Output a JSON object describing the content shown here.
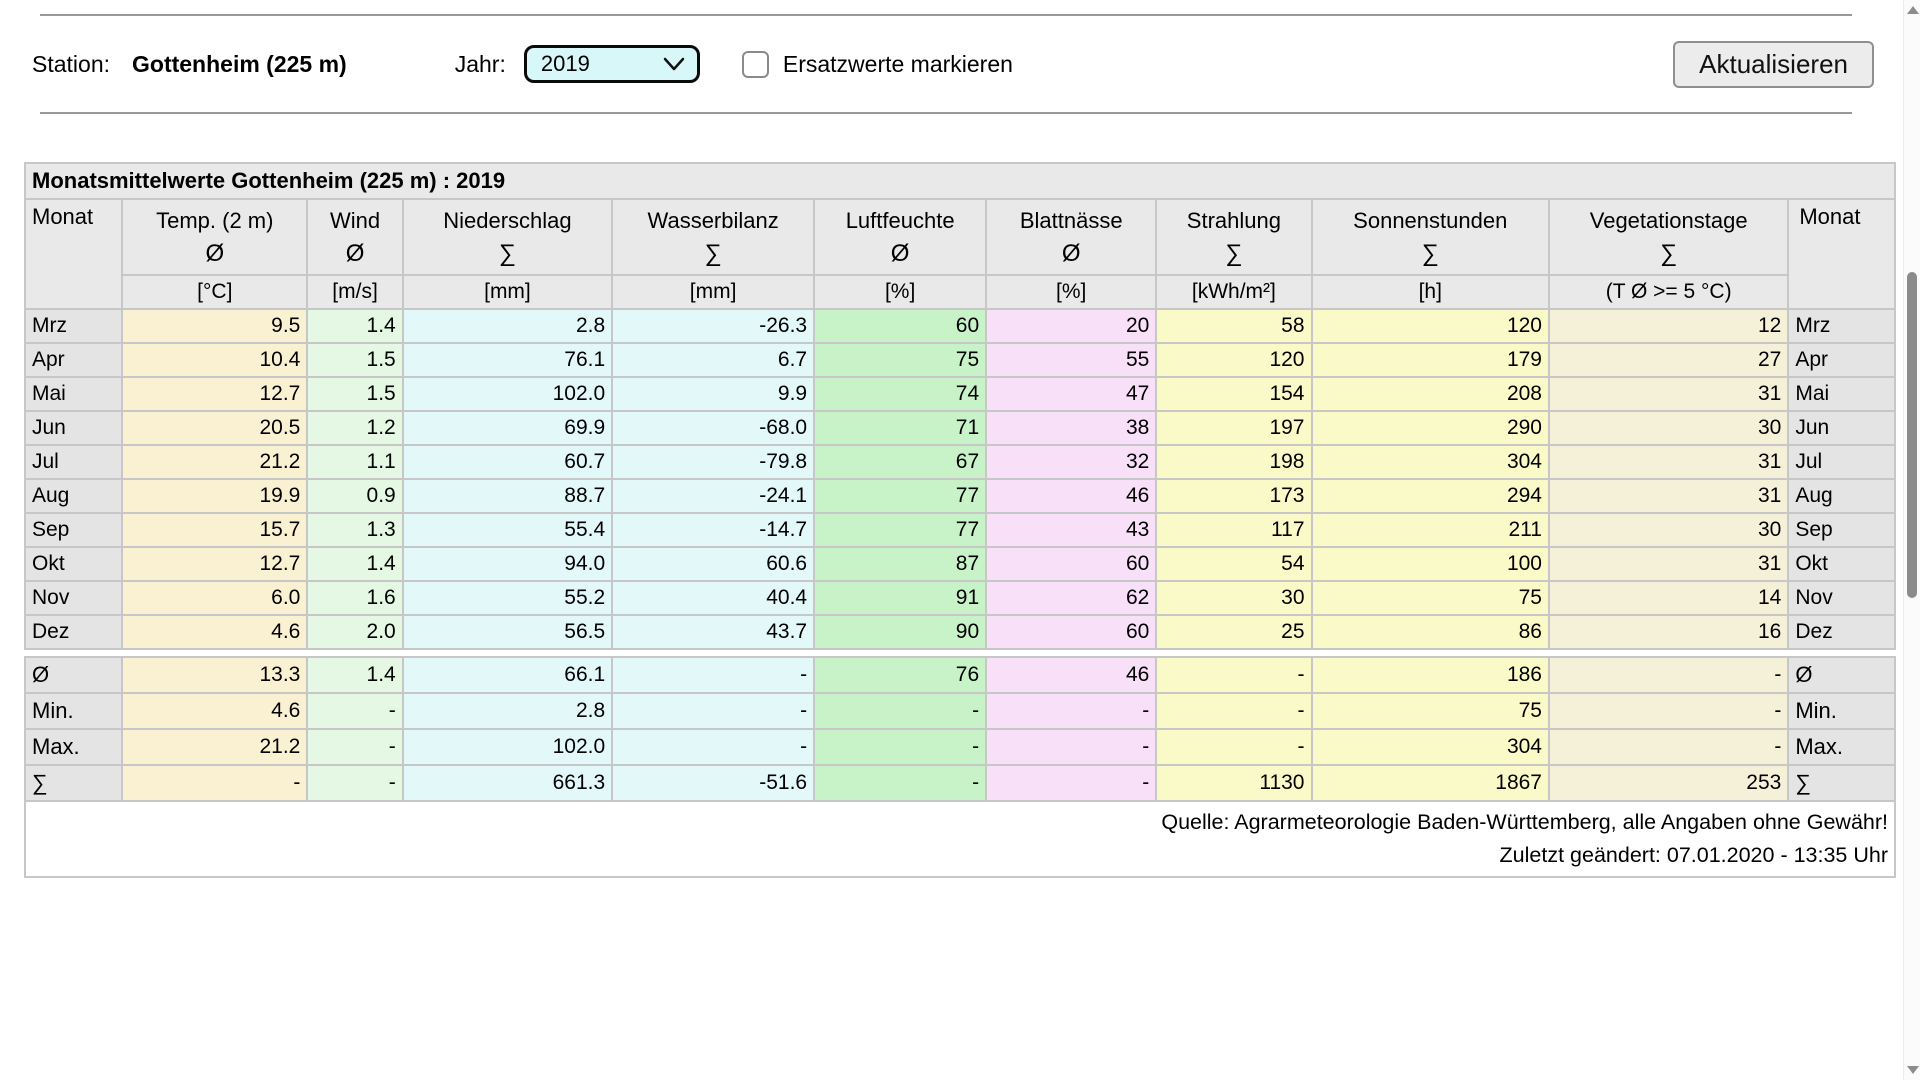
{
  "toolbar": {
    "station_label": "Station:",
    "station_value": "Gottenheim (225 m)",
    "year_label": "Jahr:",
    "year_value": "2019",
    "checkbox_label": "Ersatzwerte markieren",
    "checkbox_checked": false,
    "update_button": "Aktualisieren"
  },
  "table": {
    "title": "Monatsmittelwerte Gottenheim (225 m) : 2019",
    "month_header": "Monat",
    "month_column_color": "#e4e4e4",
    "columns": [
      {
        "name": "Temp. (2 m)",
        "symbol": "Ø",
        "unit": "[°C]",
        "color": "#faf1d3"
      },
      {
        "name": "Wind",
        "symbol": "Ø",
        "unit": "[m/s]",
        "color": "#e4f8e4"
      },
      {
        "name": "Niederschlag",
        "symbol": "∑",
        "unit": "[mm]",
        "color": "#e3f8f8"
      },
      {
        "name": "Wasserbilanz",
        "symbol": "∑",
        "unit": "[mm]",
        "color": "#e3f8f8"
      },
      {
        "name": "Luftfeuchte",
        "symbol": "Ø",
        "unit": "[%]",
        "color": "#c8f2c8"
      },
      {
        "name": "Blattnässe",
        "symbol": "Ø",
        "unit": "[%]",
        "color": "#f8e0f8"
      },
      {
        "name": "Strahlung",
        "symbol": "∑",
        "unit": "[kWh/m²]",
        "color": "#fafac8"
      },
      {
        "name": "Sonnenstunden",
        "symbol": "∑",
        "unit": "[h]",
        "color": "#fafac8"
      },
      {
        "name": "Vegetationstage",
        "symbol": "∑",
        "unit": "(T Ø >= 5 °C)",
        "color": "#f5f0d8"
      }
    ],
    "rows": [
      {
        "month": "Mrz",
        "values": [
          "9.5",
          "1.4",
          "2.8",
          "-26.3",
          "60",
          "20",
          "58",
          "120",
          "12"
        ]
      },
      {
        "month": "Apr",
        "values": [
          "10.4",
          "1.5",
          "76.1",
          "6.7",
          "75",
          "55",
          "120",
          "179",
          "27"
        ]
      },
      {
        "month": "Mai",
        "values": [
          "12.7",
          "1.5",
          "102.0",
          "9.9",
          "74",
          "47",
          "154",
          "208",
          "31"
        ]
      },
      {
        "month": "Jun",
        "values": [
          "20.5",
          "1.2",
          "69.9",
          "-68.0",
          "71",
          "38",
          "197",
          "290",
          "30"
        ]
      },
      {
        "month": "Jul",
        "values": [
          "21.2",
          "1.1",
          "60.7",
          "-79.8",
          "67",
          "32",
          "198",
          "304",
          "31"
        ]
      },
      {
        "month": "Aug",
        "values": [
          "19.9",
          "0.9",
          "88.7",
          "-24.1",
          "77",
          "46",
          "173",
          "294",
          "31"
        ]
      },
      {
        "month": "Sep",
        "values": [
          "15.7",
          "1.3",
          "55.4",
          "-14.7",
          "77",
          "43",
          "117",
          "211",
          "30"
        ]
      },
      {
        "month": "Okt",
        "values": [
          "12.7",
          "1.4",
          "94.0",
          "60.6",
          "87",
          "60",
          "54",
          "100",
          "31"
        ]
      },
      {
        "month": "Nov",
        "values": [
          "6.0",
          "1.6",
          "55.2",
          "40.4",
          "91",
          "62",
          "30",
          "75",
          "14"
        ]
      },
      {
        "month": "Dez",
        "values": [
          "4.6",
          "2.0",
          "56.5",
          "43.7",
          "90",
          "60",
          "25",
          "86",
          "16"
        ]
      }
    ],
    "summary_rows": [
      {
        "label": "Ø",
        "values": [
          "13.3",
          "1.4",
          "66.1",
          "-",
          "76",
          "46",
          "-",
          "186",
          "-"
        ]
      },
      {
        "label": "Min.",
        "values": [
          "4.6",
          "-",
          "2.8",
          "-",
          "-",
          "-",
          "-",
          "75",
          "-"
        ]
      },
      {
        "label": "Max.",
        "values": [
          "21.2",
          "-",
          "102.0",
          "-",
          "-",
          "-",
          "-",
          "304",
          "-"
        ]
      },
      {
        "label": "∑",
        "values": [
          "-",
          "-",
          "661.3",
          "-51.6",
          "-",
          "-",
          "1130",
          "1867",
          "253"
        ]
      }
    ],
    "footer_line1": "Quelle: Agrarmeteorologie Baden-Württemberg, alle Angaben ohne Gewähr!",
    "footer_line2": "Zuletzt geändert: 07.01.2020 - 13:35 Uhr"
  }
}
